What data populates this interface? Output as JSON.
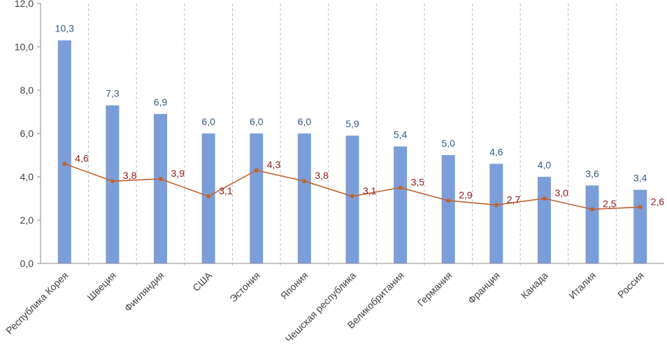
{
  "chart_data": {
    "type": "bar",
    "categories": [
      "Республика Корея",
      "Швеция",
      "Финляндия",
      "США",
      "Эстония",
      "Япония",
      "Чешская республика",
      "Великобритания",
      "Германия",
      "Франция",
      "Канада",
      "Италия",
      "Россия"
    ],
    "series": [
      {
        "name": "bars",
        "type": "bar",
        "color": "#7B9ED9",
        "label_color": "#2F5A88",
        "values": [
          10.3,
          7.3,
          6.9,
          6.0,
          6.0,
          6.0,
          5.9,
          5.4,
          5.0,
          4.6,
          4.0,
          3.6,
          3.4
        ],
        "labels": [
          "10,3",
          "7,3",
          "6,9",
          "6,0",
          "6,0",
          "6,0",
          "5,9",
          "5,4",
          "5,0",
          "4,6",
          "4,0",
          "3,6",
          "3,4"
        ]
      },
      {
        "name": "line",
        "type": "line",
        "color": "#C0622D",
        "label_color": "#8B1A1A",
        "values": [
          4.6,
          3.8,
          3.9,
          3.1,
          4.3,
          3.8,
          3.1,
          3.5,
          2.9,
          2.7,
          3.0,
          2.5,
          2.6
        ],
        "labels": [
          "4,6",
          "3,8",
          "3,9",
          "3,1",
          "4,3",
          "3,8",
          "3,1",
          "3,5",
          "2,9",
          "2,7",
          "3,0",
          "2,5",
          "2,6"
        ]
      }
    ],
    "y_ticks": [
      "0,0",
      "2,0",
      "4,0",
      "6,0",
      "8,0",
      "10,0",
      "12,0"
    ],
    "ylim": [
      0,
      12
    ],
    "title": "",
    "xlabel": "",
    "ylabel": ""
  }
}
